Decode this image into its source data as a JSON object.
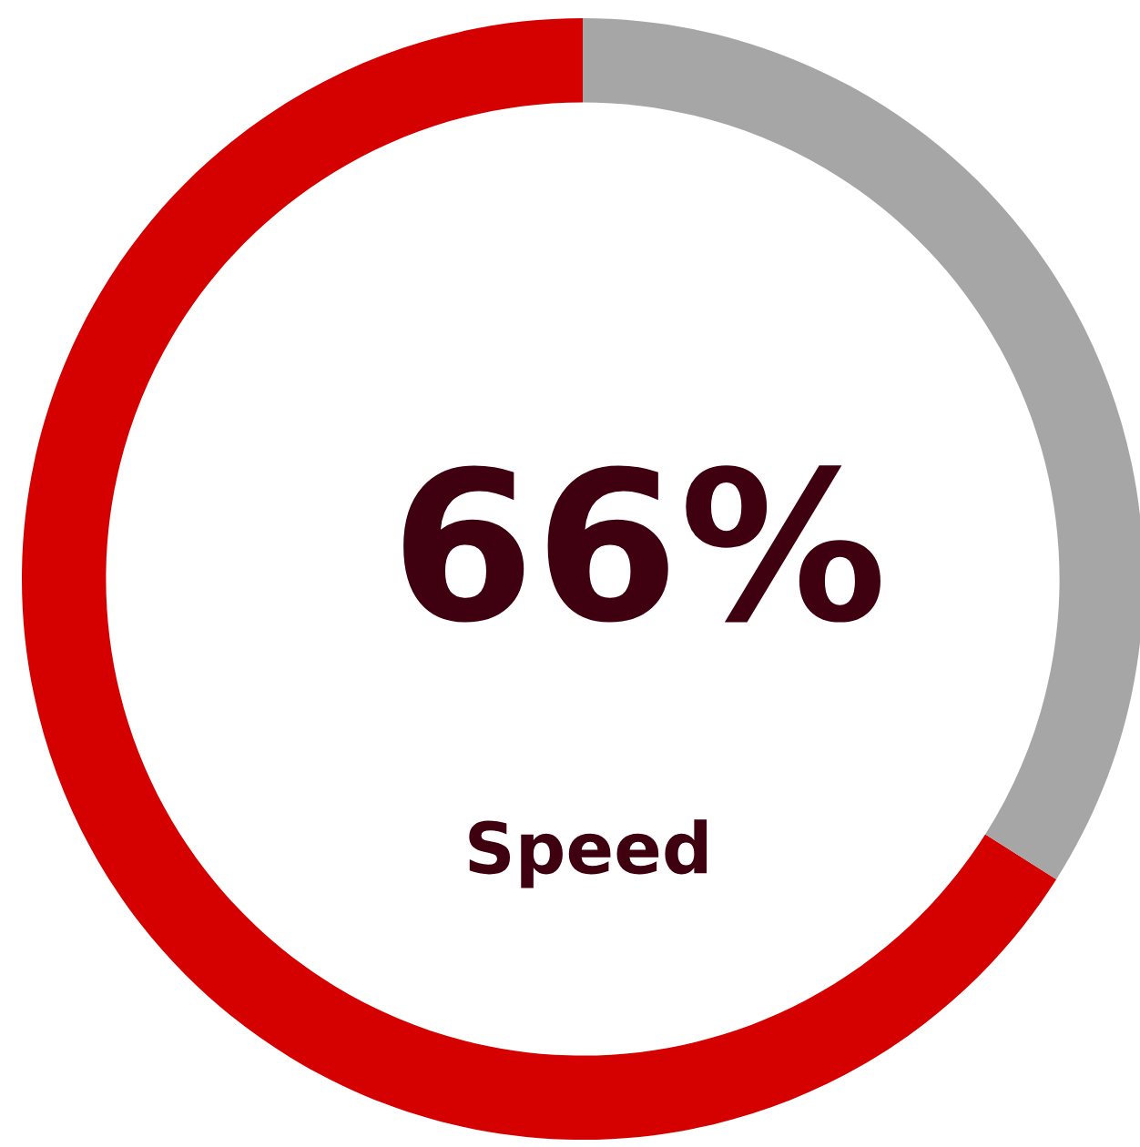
{
  "chart_data": {
    "type": "donut",
    "categories": [
      null,
      null
    ],
    "values": [
      66,
      34
    ],
    "colors": [
      "#d50000",
      "#a6a6a6"
    ],
    "annotations": [
      "66%",
      "Speed"
    ]
  }
}
